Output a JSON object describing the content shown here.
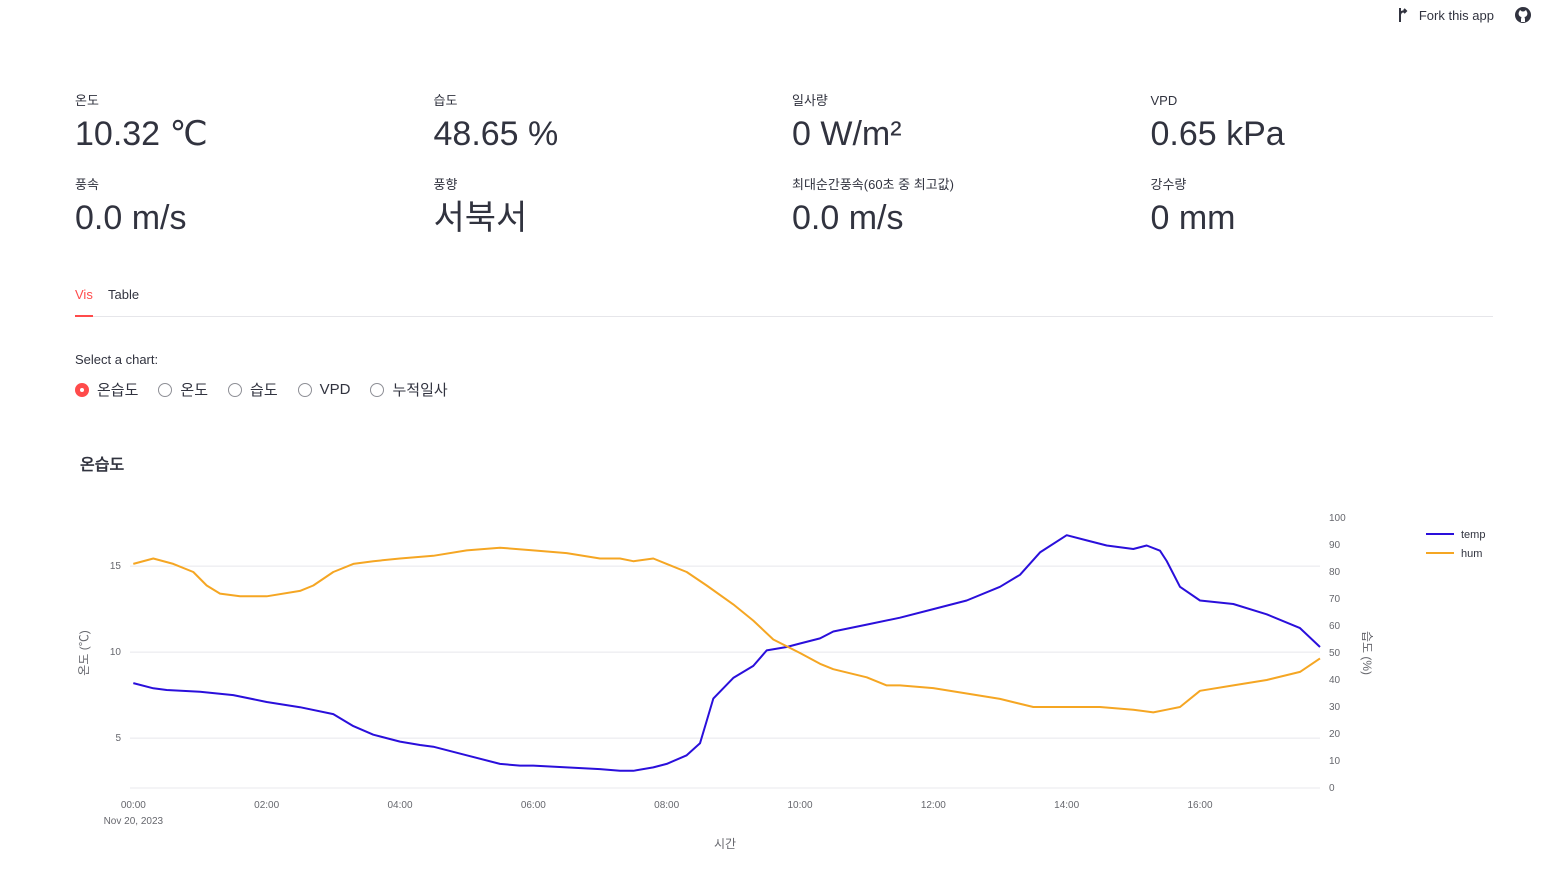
{
  "header": {
    "fork_label": "Fork this app",
    "github_icon": "github-icon",
    "fork_icon": "fork-icon"
  },
  "metrics": [
    {
      "label": "온도",
      "value": "10.32 ℃"
    },
    {
      "label": "습도",
      "value": "48.65 %"
    },
    {
      "label": "일사량",
      "value": "0 W/m²"
    },
    {
      "label": "VPD",
      "value": "0.65 kPa"
    },
    {
      "label": "풍속",
      "value": "0.0 m/s"
    },
    {
      "label": "풍향",
      "value": "서북서"
    },
    {
      "label": "최대순간풍속(60초 중 최고값)",
      "value": "0.0 m/s"
    },
    {
      "label": "강수량",
      "value": "0 mm"
    }
  ],
  "tabs": [
    {
      "label": "Vis",
      "active": true
    },
    {
      "label": "Table",
      "active": false
    }
  ],
  "chart_select": {
    "label": "Select a chart:",
    "options": [
      "온습도",
      "온도",
      "습도",
      "VPD",
      "누적일사"
    ],
    "selected": "온습도"
  },
  "chart_data": {
    "type": "line",
    "title": "온습도",
    "xlabel": "시간",
    "x_date_label": "Nov 20, 2023",
    "x_ticks": [
      "00:00",
      "02:00",
      "04:00",
      "06:00",
      "08:00",
      "10:00",
      "12:00",
      "14:00",
      "16:00"
    ],
    "xlim": [
      -0.05,
      17.8
    ],
    "y_left_label": "온도 (℃)",
    "y_left_ticks": [
      5,
      10,
      15
    ],
    "y_left_lim": [
      2.1,
      17.8
    ],
    "y_right_label": "습도 (%)",
    "y_right_ticks": [
      0,
      10,
      20,
      30,
      40,
      50,
      60,
      70,
      80,
      90,
      100
    ],
    "y_right_lim": [
      0,
      100
    ],
    "grid": true,
    "legend_position": "top-right",
    "series": [
      {
        "name": "temp",
        "axis": "left",
        "color": "#2a0fdb",
        "x": [
          0,
          0.3,
          0.5,
          1,
          1.5,
          2,
          2.5,
          3,
          3.3,
          3.6,
          4,
          4.3,
          4.5,
          5,
          5.5,
          5.8,
          6,
          6.5,
          7,
          7.3,
          7.5,
          7.8,
          8,
          8.3,
          8.5,
          8.6,
          8.7,
          9,
          9.3,
          9.5,
          9.8,
          10,
          10.3,
          10.5,
          11,
          11.5,
          12,
          12.5,
          13,
          13.3,
          13.6,
          14,
          14.3,
          14.6,
          15,
          15.2,
          15.4,
          15.5,
          15.7,
          16,
          16.5,
          17,
          17.5,
          17.8
        ],
        "y": [
          8.2,
          7.9,
          7.8,
          7.7,
          7.5,
          7.1,
          6.8,
          6.4,
          5.7,
          5.2,
          4.8,
          4.6,
          4.5,
          4.0,
          3.5,
          3.4,
          3.4,
          3.3,
          3.2,
          3.1,
          3.1,
          3.3,
          3.5,
          4.0,
          4.7,
          6.0,
          7.3,
          8.5,
          9.2,
          10.1,
          10.3,
          10.5,
          10.8,
          11.2,
          11.6,
          12.0,
          12.5,
          13.0,
          13.8,
          14.5,
          15.8,
          16.8,
          16.5,
          16.2,
          16.0,
          16.2,
          15.9,
          15.3,
          13.8,
          13.0,
          12.8,
          12.2,
          11.4,
          10.3
        ]
      },
      {
        "name": "hum",
        "axis": "right",
        "color": "#f5a623",
        "x": [
          0,
          0.3,
          0.6,
          0.9,
          1.1,
          1.3,
          1.6,
          2,
          2.5,
          2.7,
          3,
          3.3,
          3.6,
          4,
          4.5,
          5,
          5.5,
          6,
          6.5,
          7,
          7.3,
          7.5,
          7.8,
          8,
          8.3,
          8.6,
          9,
          9.3,
          9.6,
          10,
          10.3,
          10.5,
          11,
          11.3,
          11.5,
          12,
          12.5,
          13,
          13.5,
          14,
          14.5,
          15,
          15.3,
          15.5,
          15.7,
          16,
          16.5,
          17,
          17.5,
          17.8
        ],
        "y": [
          83,
          85,
          83,
          80,
          75,
          72,
          71,
          71,
          73,
          75,
          80,
          83,
          84,
          85,
          86,
          88,
          89,
          88,
          87,
          85,
          85,
          84,
          85,
          83,
          80,
          75,
          68,
          62,
          55,
          50,
          46,
          44,
          41,
          38,
          38,
          37,
          35,
          33,
          30,
          30,
          30,
          29,
          28,
          29,
          30,
          36,
          38,
          40,
          43,
          48
        ]
      }
    ]
  }
}
